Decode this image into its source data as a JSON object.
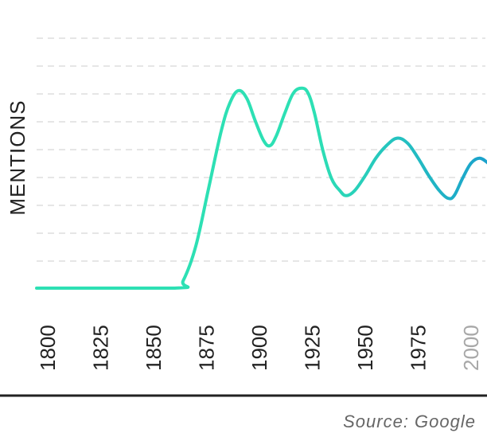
{
  "chart_data": {
    "type": "line",
    "ylabel": "MENTIONS",
    "xlabel": "",
    "x_ticks": [
      "1800",
      "1825",
      "1850",
      "1875",
      "1900",
      "1925",
      "1950",
      "1975",
      "2000"
    ],
    "xlim": [
      1800,
      2010
    ],
    "ylim": [
      0,
      100
    ],
    "grid": true,
    "series": [
      {
        "x": [
          1800,
          1860,
          1864,
          1870,
          1876,
          1882,
          1886,
          1890,
          1894,
          1898,
          1902,
          1905,
          1908,
          1912,
          1916,
          1920,
          1923,
          1926,
          1930,
          1934,
          1938,
          1941,
          1945,
          1950,
          1955,
          1960,
          1965,
          1970,
          1975,
          1980,
          1985,
          1989,
          1992,
          1996,
          2000,
          2004,
          2008,
          2010
        ],
        "values": [
          0,
          0,
          3,
          17,
          40,
          63,
          74,
          79,
          76,
          67,
          59,
          57,
          61,
          70,
          78,
          80,
          78,
          70,
          55,
          44,
          39,
          37,
          39,
          45,
          52,
          57,
          60,
          58,
          52,
          45,
          39,
          36,
          37,
          44,
          50,
          52,
          50,
          48
        ]
      }
    ],
    "colors": {
      "line_start": "#2de0b4",
      "line_end": "#1ba2cc"
    }
  },
  "source": "Source: Google"
}
